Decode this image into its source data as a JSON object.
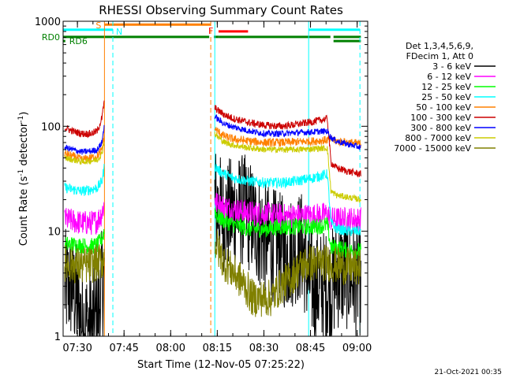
{
  "chart_data": {
    "type": "line",
    "title": "RHESSI Observing Summary Count Rates",
    "xlabel": "Start Time (12-Nov-05 07:25:22)",
    "ylabel": "Count Rate (s",
    "ylabel_sup": "-1",
    "ylabel_mid": " detector",
    "ylabel_end": ")",
    "x_unit": "minutes after 07:25:22",
    "xlim": [
      0,
      98
    ],
    "ylim": [
      1,
      1000
    ],
    "y_scale": "log",
    "x_ticks": [
      {
        "label": "07:30",
        "minutes": 4.6
      },
      {
        "label": "07:45",
        "minutes": 19.6
      },
      {
        "label": "08:00",
        "minutes": 34.6
      },
      {
        "label": "08:15",
        "minutes": 49.6
      },
      {
        "label": "08:30",
        "minutes": 64.6
      },
      {
        "label": "08:45",
        "minutes": 79.6
      },
      {
        "label": "09:00",
        "minutes": 94.6
      }
    ],
    "y_ticks": [
      {
        "label": "1",
        "value": 1
      },
      {
        "label": "10",
        "value": 10
      },
      {
        "label": "100",
        "value": 100
      },
      {
        "label": "1000",
        "value": 1000
      }
    ],
    "legend_header": [
      "Det 1,3,4,5,6,9,",
      "FDecim 1, Att 0"
    ],
    "legend_position": "right",
    "footer_date": "21-Oct-2021 00:35",
    "flag_labels": {
      "saa": "S",
      "night": "N",
      "flare": "F",
      "rd0": "RD0",
      "rd6": "RD6"
    },
    "flag_colors": {
      "saa": "#ff8000",
      "night": "#00ffff",
      "flare": "#ff0000",
      "rd0": "#008000",
      "rd6": "#008000"
    },
    "vertical_markers": [
      {
        "minutes": 13.3,
        "color": "#ff8000",
        "style": "solid"
      },
      {
        "minutes": 16.0,
        "color": "#00ffff",
        "style": "dashed"
      },
      {
        "minutes": 47.5,
        "color": "#ff8000",
        "style": "dashed"
      },
      {
        "minutes": 48.8,
        "color": "#00ffff",
        "style": "solid"
      },
      {
        "minutes": 79.0,
        "color": "#00ffff",
        "style": "solid"
      },
      {
        "minutes": 95.5,
        "color": "#00ffff",
        "style": "dashed"
      }
    ],
    "flag_bars": [
      {
        "kind": "night",
        "segments": [
          [
            0,
            16.0
          ],
          [
            79.0,
            95.5
          ]
        ],
        "value": 830
      },
      {
        "kind": "saa",
        "segments": [
          [
            13.3,
            47.5
          ]
        ],
        "value": 930
      },
      {
        "kind": "flare",
        "segments": [
          [
            50.0,
            59.5
          ]
        ],
        "value": 800
      },
      {
        "kind": "rd0",
        "segments": [
          [
            0,
            47.0
          ],
          [
            48.5,
            50.2
          ],
          [
            50.2,
            86.0
          ],
          [
            87.0,
            95.8
          ]
        ],
        "value": 710
      },
      {
        "kind": "rd6",
        "segments": [
          [
            0,
            0.7
          ],
          [
            87.0,
            95.8
          ]
        ],
        "value": 648
      }
    ],
    "series": [
      {
        "name": "3 - 6 keV",
        "color": "#000000",
        "noise": 0.55,
        "segments": [
          {
            "x": [
              0.5,
              3,
              6,
              9,
              11,
              12.5,
              13.2
            ],
            "y": [
              3.0,
              3.0,
              1.4,
              1.2,
              1.5,
              3.0,
              3.5
            ]
          },
          {
            "x": [
              48.8,
              50,
              52,
              55,
              58,
              60,
              63,
              66,
              69,
              72,
              75,
              77,
              79,
              81,
              84,
              86,
              88,
              91,
              94,
              95.8
            ],
            "y": [
              20,
              16,
              14,
              15,
              16,
              14,
              10,
              8,
              7,
              6,
              7,
              7,
              3.5,
              3.0,
              3.0,
              2.8,
              4.0,
              4.0,
              3.5,
              3.5
            ]
          }
        ]
      },
      {
        "name": "6 - 12 keV",
        "color": "#ff00ff",
        "noise": 0.12,
        "segments": [
          {
            "x": [
              0.5,
              3,
              6,
              9,
              11,
              12.5,
              13.2
            ],
            "y": [
              13,
              12.5,
              12,
              12,
              12.5,
              15,
              18
            ]
          },
          {
            "x": [
              48.8,
              49.5,
              52,
              55,
              60,
              65,
              70,
              75,
              80,
              85,
              86.2,
              88,
              92,
              95.8
            ],
            "y": [
              21,
              18,
              17,
              16,
              15,
              14.5,
              14,
              14,
              14,
              14.5,
              13,
              13,
              13,
              13
            ]
          }
        ]
      },
      {
        "name": "12 - 25 keV",
        "color": "#00ff00",
        "noise": 0.08,
        "segments": [
          {
            "x": [
              0.5,
              3,
              6,
              9,
              11,
              12.5,
              13.2
            ],
            "y": [
              7.5,
              7.5,
              7.3,
              7.2,
              7.4,
              8.5,
              10
            ]
          },
          {
            "x": [
              48.8,
              49.5,
              52,
              55,
              60,
              65,
              70,
              75,
              80,
              85,
              86.2,
              88,
              92,
              95.8
            ],
            "y": [
              16,
              14,
              12.5,
              11.5,
              10.5,
              10.5,
              11,
              11,
              11,
              11.5,
              7,
              7,
              6.5,
              6.5
            ]
          }
        ]
      },
      {
        "name": "25 - 50 keV",
        "color": "#00ffff",
        "noise": 0.05,
        "segments": [
          {
            "x": [
              0.5,
              3,
              6,
              9,
              11,
              12.5,
              13.2
            ],
            "y": [
              26,
              25,
              24,
              25,
              26,
              30,
              40
            ]
          },
          {
            "x": [
              48.8,
              50,
              52,
              55,
              60,
              65,
              70,
              75,
              80,
              85,
              86.2,
              88,
              92,
              95.8
            ],
            "y": [
              42,
              38,
              35,
              32,
              30,
              29,
              29,
              30,
              32,
              35,
              12,
              10.5,
              10,
              10
            ]
          }
        ]
      },
      {
        "name": "50 - 100 keV",
        "color": "#ff8000",
        "noise": 0.04,
        "segments": [
          {
            "x": [
              0.5,
              3,
              6,
              9,
              11,
              12.5,
              13.2
            ],
            "y": [
              55,
              52,
              48,
              50,
              52,
              60,
              80
            ]
          },
          {
            "x": [
              48.8,
              50,
              52,
              55,
              60,
              65,
              70,
              75,
              80,
              85,
              86.2,
              88,
              92,
              95.8
            ],
            "y": [
              95,
              88,
              80,
              75,
              72,
              70,
              70,
              71,
              72,
              74,
              75,
              72,
              70,
              68
            ]
          }
        ]
      },
      {
        "name": "100 - 300 keV",
        "color": "#cc0000",
        "noise": 0.035,
        "segments": [
          {
            "x": [
              0.5,
              3,
              6,
              9,
              11,
              12.5,
              13.2
            ],
            "y": [
              97,
              90,
              85,
              85,
              90,
              120,
              170
            ]
          },
          {
            "x": [
              48.8,
              50,
              52,
              55,
              60,
              65,
              70,
              75,
              80,
              85,
              86.2,
              88,
              92,
              95.8
            ],
            "y": [
              150,
              140,
              128,
              118,
              108,
              102,
              100,
              104,
              110,
              118,
              45,
              40,
              37,
              35
            ]
          }
        ]
      },
      {
        "name": "300 - 800 keV",
        "color": "#0000ff",
        "noise": 0.03,
        "segments": [
          {
            "x": [
              0.5,
              3,
              6,
              9,
              11,
              12.5,
              13.2
            ],
            "y": [
              63,
              60,
              57,
              58,
              60,
              70,
              100
            ]
          },
          {
            "x": [
              48.8,
              50,
              52,
              55,
              60,
              65,
              70,
              75,
              80,
              85,
              86.2,
              88,
              92,
              95.8
            ],
            "y": [
              125,
              115,
              105,
              98,
              90,
              85,
              85,
              87,
              88,
              90,
              78,
              72,
              67,
              63
            ]
          }
        ]
      },
      {
        "name": "800 - 7000 keV",
        "color": "#cccc00",
        "noise": 0.03,
        "segments": [
          {
            "x": [
              0.5,
              3,
              6,
              9,
              11,
              12.5,
              13.2
            ],
            "y": [
              50,
              48,
              46,
              47,
              48,
              55,
              72
            ]
          },
          {
            "x": [
              48.8,
              50,
              52,
              55,
              60,
              65,
              70,
              75,
              80,
              85,
              86.2,
              88,
              92,
              95.8
            ],
            "y": [
              85,
              78,
              70,
              66,
              62,
              60,
              60,
              60,
              61,
              62,
              24,
              22,
              21,
              20
            ]
          }
        ]
      },
      {
        "name": "7000 - 15000 keV",
        "color": "#808000",
        "noise": 0.18,
        "segments": [
          {
            "x": [
              0.5,
              3,
              6,
              9,
              11,
              12.5,
              13.2
            ],
            "y": [
              5.0,
              4.8,
              4.7,
              4.8,
              5.0,
              5.2,
              5.5
            ]
          },
          {
            "x": [
              48.8,
              50,
              52,
              55,
              58,
              61,
              64,
              67,
              70,
              73,
              76,
              79,
              82,
              85,
              88,
              91,
              95.8
            ],
            "y": [
              8,
              6.5,
              5,
              4,
              3.2,
              2.3,
              2.3,
              2.3,
              3.0,
              3.5,
              4.5,
              5,
              5,
              5,
              4.8,
              4.6,
              4.5
            ]
          }
        ]
      }
    ]
  }
}
